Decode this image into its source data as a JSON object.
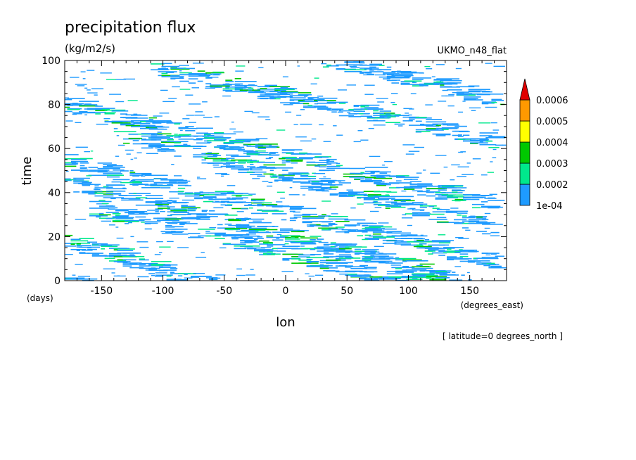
{
  "chart_data": {
    "type": "heatmap",
    "title": "precipitation flux",
    "units": "(kg/m2/s)",
    "model_label": "UKMO_n48_flat",
    "xlabel": "lon",
    "xunits": "(degrees_east)",
    "ylabel": "time",
    "yunits": "(days)",
    "xlim": [
      -180,
      180
    ],
    "ylim": [
      0,
      100
    ],
    "xticks": [
      -150,
      -100,
      -50,
      0,
      50,
      100,
      150
    ],
    "yticks": [
      0,
      20,
      40,
      60,
      80,
      100
    ],
    "footnote": "[ latitude=0 degrees_north ]",
    "colorbar": {
      "levels": [
        "1e-04",
        "0.0002",
        "0.0003",
        "0.0004",
        "0.0005",
        "0.0006"
      ],
      "colors": [
        "#1e9bff",
        "#00e88c",
        "#00c800",
        "#ffff00",
        "#ff9900",
        "#e00000"
      ]
    },
    "bands": [
      {
        "lon_start": -180,
        "t_start": 0,
        "slope": 0.16
      },
      {
        "lon_start": -180,
        "t_start": 18,
        "slope": 0.17
      },
      {
        "lon_start": -160,
        "t_start": 33,
        "slope": 0.13
      },
      {
        "lon_start": -180,
        "t_start": 45,
        "slope": 0.14
      },
      {
        "lon_start": -180,
        "t_start": 54,
        "slope": 0.13
      },
      {
        "lon_start": -140,
        "t_start": 67,
        "slope": 0.14
      },
      {
        "lon_start": -180,
        "t_start": 80,
        "slope": 0.13
      },
      {
        "lon_start": -110,
        "t_start": 97,
        "slope": 0.12
      },
      {
        "lon_start": 20,
        "t_start": 102,
        "slope": 0.13
      }
    ]
  }
}
